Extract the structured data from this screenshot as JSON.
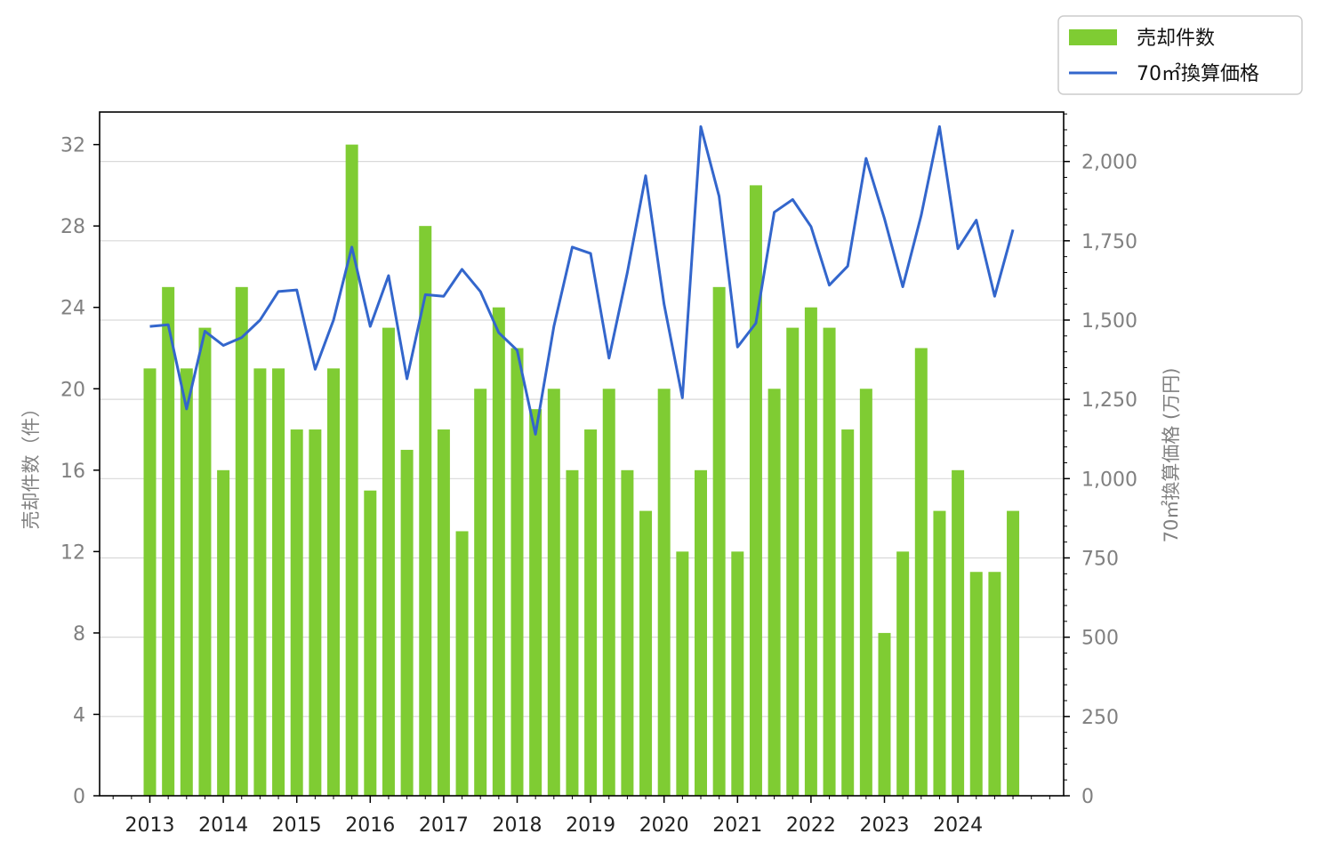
{
  "chart_data": {
    "type": "bar+line",
    "title": "",
    "x_tick_labels": [
      "2013",
      "2014",
      "2015",
      "2016",
      "2017",
      "2018",
      "2019",
      "2020",
      "2021",
      "2022",
      "2023",
      "2024"
    ],
    "left_axis": {
      "label": "売却件数（件）",
      "ylim": [
        0,
        33.6
      ],
      "ticks": [
        0,
        4,
        8,
        12,
        16,
        20,
        24,
        28,
        32
      ],
      "tick_labels": [
        "0",
        "4",
        "8",
        "12",
        "16",
        "20",
        "24",
        "28",
        "32"
      ]
    },
    "right_axis": {
      "label": "70㎡換算価格 (万円)",
      "ylim": [
        0,
        2156
      ],
      "ticks": [
        0,
        250,
        500,
        750,
        1000,
        1250,
        1500,
        1750,
        2000
      ],
      "tick_labels": [
        "0",
        "250",
        "500",
        "750",
        "1,000",
        "1,250",
        "1,500",
        "1,750",
        "2,000"
      ]
    },
    "grid": "horizontal",
    "legend_position": "top-right, outside plot",
    "series": [
      {
        "name": "売却件数",
        "type": "bar",
        "axis": "left",
        "color": "#7fcc33",
        "values": [
          21,
          25,
          21,
          23,
          16,
          25,
          21,
          21,
          18,
          18,
          21,
          32,
          15,
          23,
          17,
          28,
          18,
          13,
          20,
          24,
          22,
          19,
          20,
          16,
          18,
          20,
          16,
          14,
          20,
          12,
          16,
          25,
          12,
          30,
          20,
          23,
          24,
          23,
          18,
          20,
          8,
          12,
          22,
          14,
          16,
          11,
          11,
          14
        ]
      },
      {
        "name": "70㎡換算価格",
        "type": "line",
        "axis": "right",
        "color": "#3366cc",
        "values": [
          1480,
          1485,
          1220,
          1465,
          1420,
          1445,
          1500,
          1590,
          1595,
          1345,
          1500,
          1730,
          1480,
          1640,
          1315,
          1580,
          1575,
          1660,
          1590,
          1460,
          1405,
          1140,
          1480,
          1730,
          1710,
          1380,
          1650,
          1955,
          1550,
          1255,
          2110,
          1890,
          1415,
          1490,
          1840,
          1880,
          1795,
          1610,
          1670,
          2010,
          1820,
          1605,
          1830,
          2110,
          1725,
          1815,
          1575,
          1785
        ]
      }
    ]
  }
}
